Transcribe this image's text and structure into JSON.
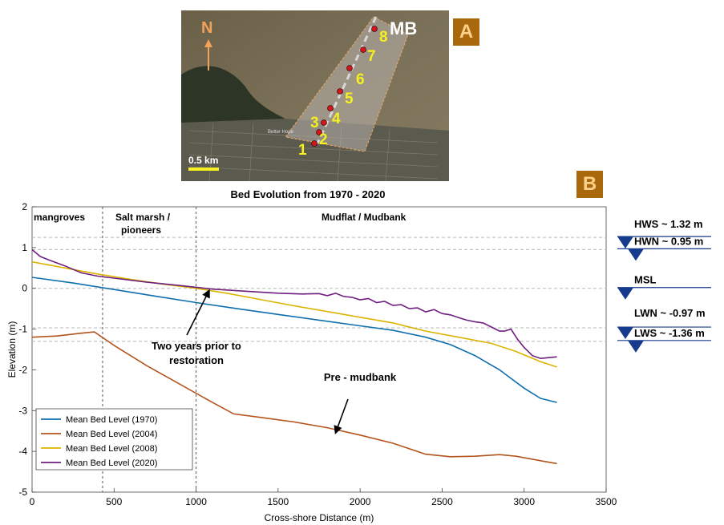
{
  "panels": {
    "map_label": "A",
    "chart_label": "B"
  },
  "map": {
    "north_label": "N",
    "transect_label": "MB",
    "scale_label": "0.5 km",
    "street_text": "Better Hope",
    "points": [
      "1",
      "2",
      "3",
      "4",
      "5",
      "6",
      "7",
      "8"
    ],
    "colors": {
      "points": "#d8141a",
      "labels": "#f5f01e",
      "north": "#f2a25a"
    }
  },
  "chart_data": {
    "type": "line",
    "title": "Bed Evolution from 1970 - 2020",
    "xlabel": "Cross-shore Distance (m)",
    "ylabel": "Elevation (m)",
    "xlim": [
      0,
      3500
    ],
    "ylim": [
      -5,
      2
    ],
    "xticks": [
      "0",
      "500",
      "1000",
      "1500",
      "2000",
      "2500",
      "3000",
      "3500"
    ],
    "yticks": [
      "2",
      "1",
      "0",
      "-1",
      "-2",
      "-3",
      "-4",
      "-5"
    ],
    "grid": false,
    "legend_position": "bottom-left",
    "series": [
      {
        "name": "Mean Bed Level (1970)",
        "color": "#0e6fae",
        "x": [
          0,
          250,
          500,
          750,
          1000,
          1250,
          1500,
          1750,
          2000,
          2200,
          2400,
          2550,
          2700,
          2850,
          3000,
          3100,
          3200
        ],
        "y": [
          0.27,
          0.13,
          -0.03,
          -0.19,
          -0.35,
          -0.5,
          -0.64,
          -0.78,
          -0.92,
          -1.03,
          -1.2,
          -1.38,
          -1.65,
          -2.0,
          -2.45,
          -2.7,
          -2.8
        ]
      },
      {
        "name": "Mean Bed Level (2004)",
        "color": "#b4541c",
        "x": [
          0,
          150,
          300,
          380,
          500,
          700,
          900,
          1100,
          1230,
          1400,
          1600,
          1800,
          2000,
          2200,
          2400,
          2550,
          2700,
          2850,
          2950,
          3100,
          3200
        ],
        "y": [
          -1.2,
          -1.17,
          -1.1,
          -1.07,
          -1.4,
          -1.9,
          -2.35,
          -2.8,
          -3.08,
          -3.17,
          -3.28,
          -3.42,
          -3.6,
          -3.8,
          -4.07,
          -4.13,
          -4.12,
          -4.08,
          -4.12,
          -4.23,
          -4.3
        ]
      },
      {
        "name": "Mean Bed Level (2008)",
        "color": "#dbb400",
        "x": [
          0,
          200,
          400,
          600,
          800,
          1000,
          1200,
          1400,
          1600,
          1800,
          2000,
          2200,
          2400,
          2600,
          2800,
          2950,
          3100,
          3200
        ],
        "y": [
          0.65,
          0.5,
          0.35,
          0.22,
          0.1,
          0.0,
          -0.13,
          -0.28,
          -0.43,
          -0.57,
          -0.71,
          -0.85,
          -1.05,
          -1.2,
          -1.35,
          -1.55,
          -1.8,
          -1.93
        ]
      },
      {
        "name": "Mean Bed Level (2020)",
        "color": "#6f1f7e",
        "x": [
          0,
          50,
          100,
          200,
          300,
          400,
          500,
          700,
          900,
          1100,
          1300,
          1500,
          1650,
          1750,
          1800,
          1850,
          1900,
          1950,
          2000,
          2050,
          2100,
          2150,
          2200,
          2250,
          2300,
          2350,
          2400,
          2450,
          2500,
          2550,
          2600,
          2650,
          2700,
          2750,
          2800,
          2850,
          2880,
          2920,
          2960,
          3000,
          3050,
          3100,
          3150,
          3200
        ],
        "y": [
          0.95,
          0.78,
          0.7,
          0.55,
          0.38,
          0.3,
          0.25,
          0.15,
          0.07,
          -0.02,
          -0.07,
          -0.12,
          -0.14,
          -0.13,
          -0.18,
          -0.12,
          -0.2,
          -0.22,
          -0.28,
          -0.25,
          -0.35,
          -0.32,
          -0.42,
          -0.4,
          -0.5,
          -0.48,
          -0.58,
          -0.52,
          -0.62,
          -0.65,
          -0.72,
          -0.78,
          -0.82,
          -0.85,
          -0.95,
          -1.05,
          -1.05,
          -1.0,
          -1.25,
          -1.45,
          -1.65,
          -1.72,
          -1.7,
          -1.68
        ]
      }
    ],
    "reference_lines": [
      {
        "y": 1.25,
        "color": "#b8b8b8"
      },
      {
        "y": 0.95,
        "color": "#b8b8b8"
      },
      {
        "y": 0.0,
        "color": "#b8b8b8"
      },
      {
        "y": -0.97,
        "color": "#b8b8b8"
      },
      {
        "y": -1.3,
        "color": "#b8b8b8"
      }
    ],
    "zone_dividers_x": [
      430,
      1000
    ],
    "zone_labels": [
      "mangroves",
      "Salt marsh /",
      "pioneers",
      "Mudflat / Mudbank"
    ],
    "annotations": [
      {
        "text": "Two years prior to",
        "arrow_to_x": 1080,
        "arrow_to_y": -0.05
      },
      {
        "text": "restoration"
      },
      {
        "text": "Pre - mudbank",
        "arrow_to_x": 1850,
        "arrow_to_y": -3.55
      }
    ],
    "tide_levels": [
      {
        "label": "HWS ~ 1.32 m",
        "y": 1.25
      },
      {
        "label": "HWN ~ 0.95 m",
        "y": 0.95
      },
      {
        "label": "MSL",
        "y": 0.0
      },
      {
        "label": "LWN ~ -0.97 m",
        "y": -0.97
      },
      {
        "label": "LWS ~ -1.36 m",
        "y": -1.3
      }
    ],
    "tide_marker_color": "#163a8c"
  }
}
